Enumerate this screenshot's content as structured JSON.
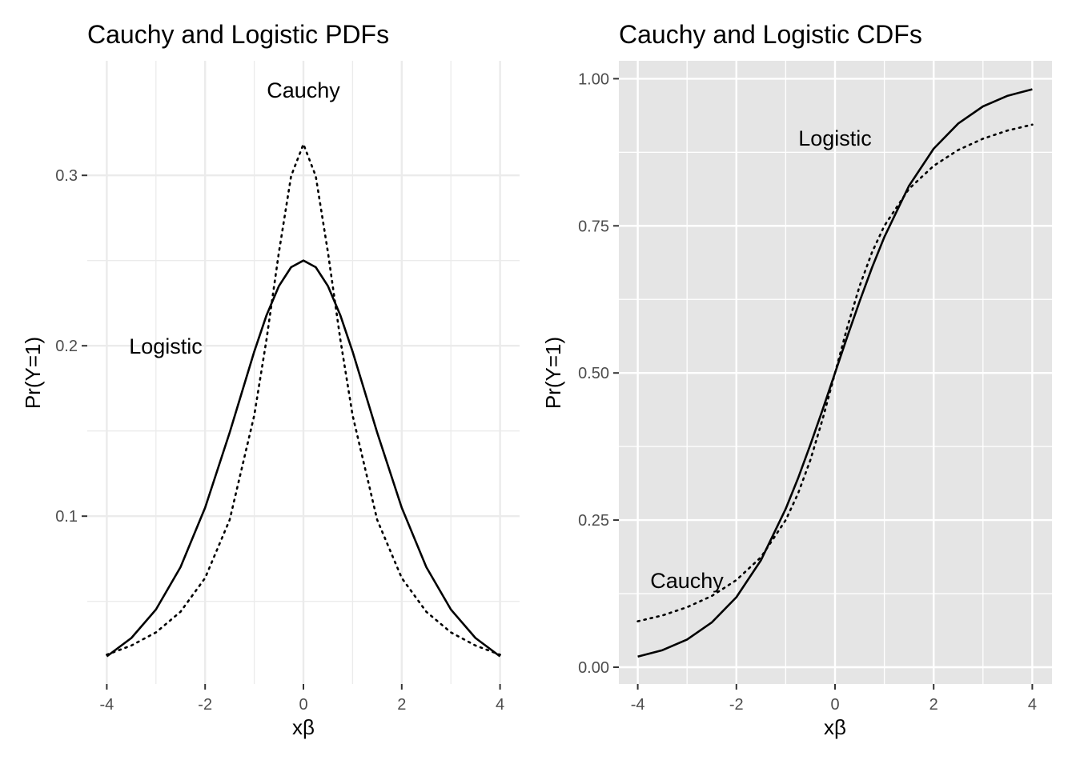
{
  "chart_data": [
    {
      "type": "line",
      "title": "Cauchy and Logistic PDFs",
      "xlabel": "xβ",
      "ylabel": "Pr(Y=1)",
      "xlim": [
        -4,
        4
      ],
      "ylim": [
        0.0,
        0.35
      ],
      "x_ticks": [
        "-4",
        "-2",
        "0",
        "2",
        "4"
      ],
      "y_ticks": [
        "0.1",
        "0.2",
        "0.3"
      ],
      "panel_background": "white",
      "grid": true,
      "x": [
        -4,
        -3.5,
        -3,
        -2.5,
        -2,
        -1.5,
        -1,
        -0.75,
        -0.5,
        -0.25,
        0,
        0.25,
        0.5,
        0.75,
        1,
        1.5,
        2,
        2.5,
        3,
        3.5,
        4
      ],
      "series": [
        {
          "name": "Logistic",
          "line": "solid",
          "values": [
            0.0177,
            0.0285,
            0.0452,
            0.0701,
            0.105,
            0.1491,
            0.1966,
            0.2179,
            0.235,
            0.2461,
            0.25,
            0.2461,
            0.235,
            0.2179,
            0.1966,
            0.1491,
            0.105,
            0.0701,
            0.0452,
            0.0285,
            0.0177
          ]
        },
        {
          "name": "Cauchy",
          "line": "dotted",
          "values": [
            0.0187,
            0.0241,
            0.0318,
            0.0439,
            0.0637,
            0.0979,
            0.1592,
            0.2037,
            0.2546,
            0.2996,
            0.3183,
            0.2996,
            0.2546,
            0.2037,
            0.1592,
            0.0979,
            0.0637,
            0.0439,
            0.0318,
            0.0241,
            0.0187
          ]
        }
      ],
      "annotations": [
        {
          "text": "Cauchy",
          "x": 0,
          "y": 0.348
        },
        {
          "text": "Logistic",
          "x": -2.8,
          "y": 0.2
        }
      ]
    },
    {
      "type": "line",
      "title": "Cauchy and Logistic CDFs",
      "xlabel": "xβ",
      "ylabel": "Pr(Y=1)",
      "xlim": [
        -4,
        4
      ],
      "ylim": [
        0.0,
        1.0
      ],
      "x_ticks": [
        "-4",
        "-2",
        "0",
        "2",
        "4"
      ],
      "y_ticks": [
        "0.00",
        "0.25",
        "0.50",
        "0.75",
        "1.00"
      ],
      "panel_background": "grey",
      "grid": true,
      "x": [
        -4,
        -3.5,
        -3,
        -2.5,
        -2,
        -1.5,
        -1,
        -0.75,
        -0.5,
        -0.25,
        0,
        0.25,
        0.5,
        0.75,
        1,
        1.5,
        2,
        2.5,
        3,
        3.5,
        4
      ],
      "series": [
        {
          "name": "Logistic",
          "line": "solid",
          "values": [
            0.018,
            0.029,
            0.047,
            0.076,
            0.119,
            0.182,
            0.269,
            0.321,
            0.378,
            0.438,
            0.5,
            0.562,
            0.622,
            0.679,
            0.731,
            0.818,
            0.881,
            0.924,
            0.953,
            0.971,
            0.982
          ]
        },
        {
          "name": "Cauchy",
          "line": "dotted",
          "values": [
            0.078,
            0.088,
            0.102,
            0.121,
            0.148,
            0.187,
            0.25,
            0.295,
            0.352,
            0.422,
            0.5,
            0.578,
            0.648,
            0.705,
            0.75,
            0.813,
            0.852,
            0.879,
            0.898,
            0.912,
            0.922
          ]
        }
      ],
      "annotations": [
        {
          "text": "Logistic",
          "x": 0,
          "y": 0.9
        },
        {
          "text": "Cauchy",
          "x": -3.0,
          "y": 0.15
        }
      ]
    }
  ]
}
